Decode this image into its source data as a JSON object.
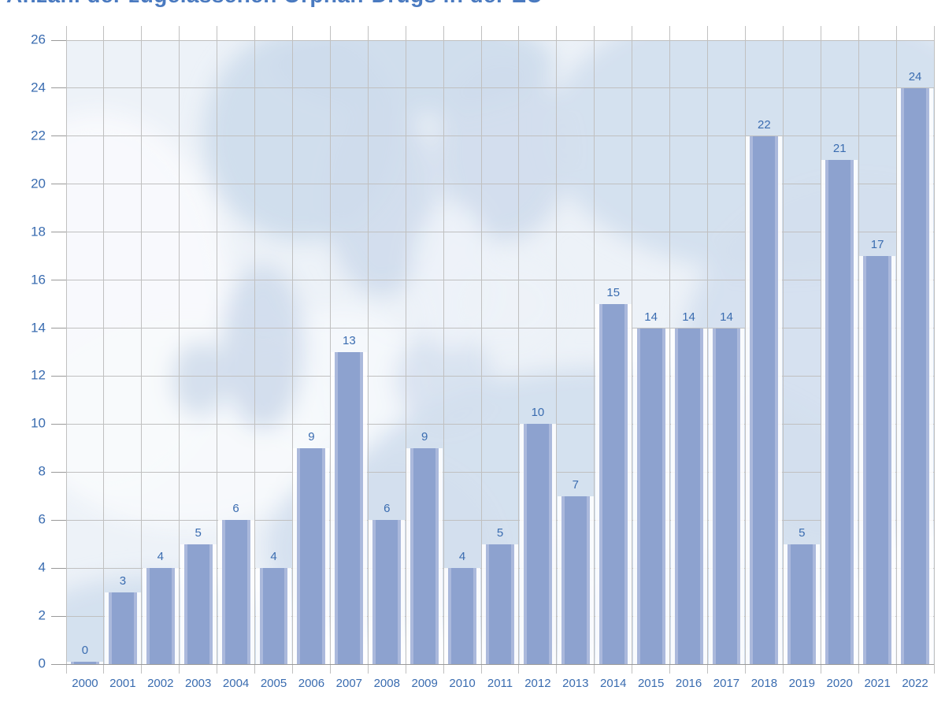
{
  "chart_data": {
    "type": "bar",
    "title": "Anzahl der zugelassenen Orphan-Drugs in der EU",
    "categories": [
      "2000",
      "2001",
      "2002",
      "2003",
      "2004",
      "2005",
      "2006",
      "2007",
      "2008",
      "2009",
      "2010",
      "2011",
      "2012",
      "2013",
      "2014",
      "2015",
      "2016",
      "2017",
      "2018",
      "2019",
      "2020",
      "2021",
      "2022"
    ],
    "values": [
      0,
      3,
      4,
      5,
      6,
      4,
      9,
      13,
      6,
      9,
      4,
      5,
      10,
      7,
      15,
      14,
      14,
      14,
      22,
      5,
      21,
      17,
      24
    ],
    "value_labels_shown": true,
    "xlabel": "",
    "ylabel": "",
    "ylim": [
      0,
      26
    ],
    "ytick_step": 2,
    "grid": "both",
    "legend": "none",
    "background": "faded Europe map silhouette",
    "colors": {
      "bar": "#8da2cf",
      "bar_edge": "#abb9dc",
      "label": "#3a6cb0",
      "title": "#4a7ac0",
      "grid": "#c0c0c0",
      "axis": "#9a9a9a",
      "plot_sea": "#edf2f8",
      "map_land": "#cfdcec"
    }
  }
}
